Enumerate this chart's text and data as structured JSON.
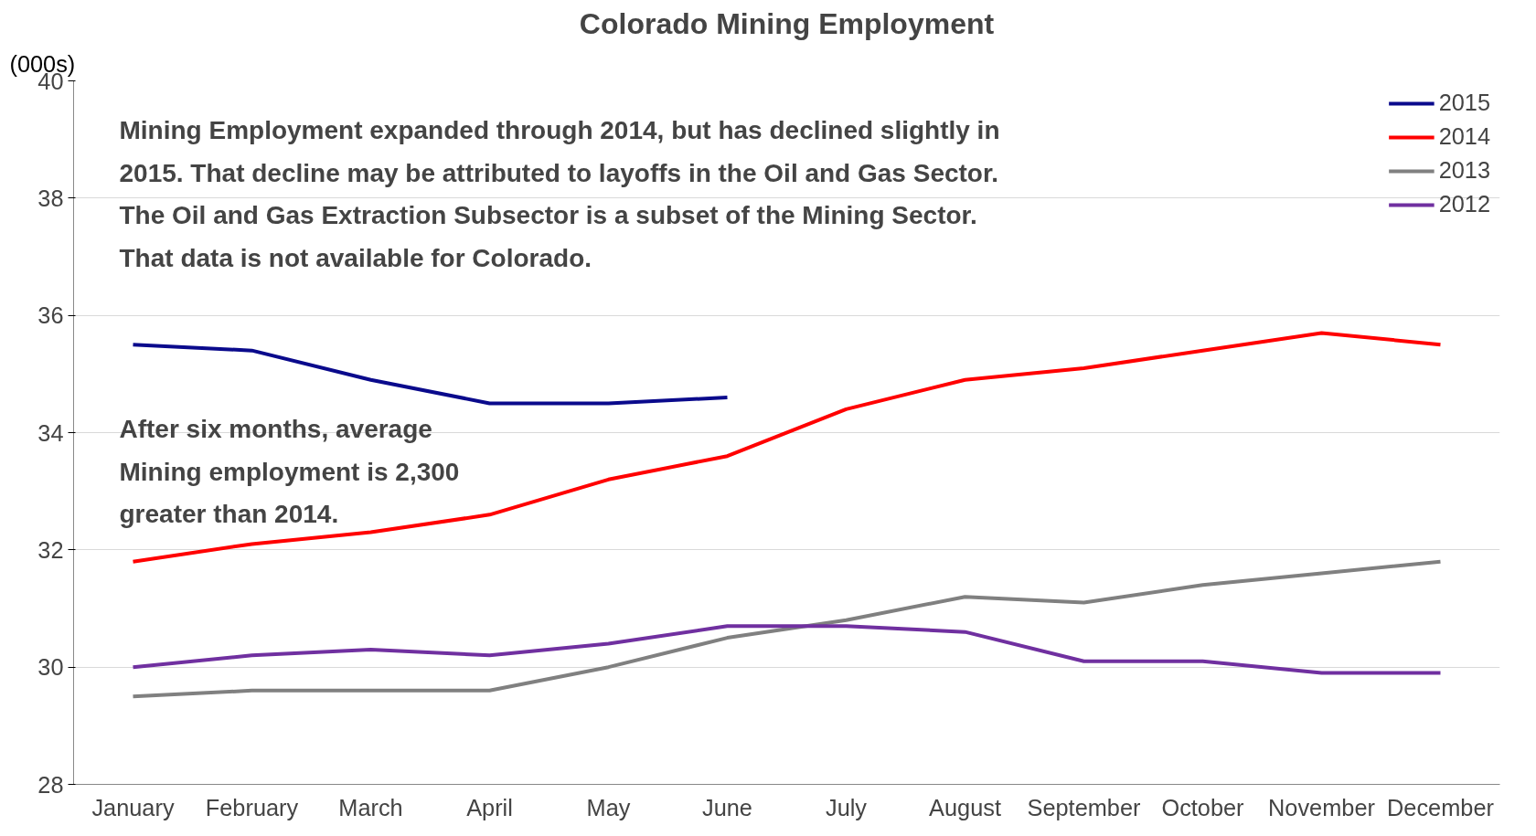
{
  "chart_data": {
    "type": "line",
    "title": "Colorado Mining Employment",
    "ylabel": "(000s)",
    "categories": [
      "January",
      "February",
      "March",
      "April",
      "May",
      "June",
      "July",
      "August",
      "September",
      "October",
      "November",
      "December"
    ],
    "series": [
      {
        "name": "2015",
        "color": "#0a0a8c",
        "values": [
          35.5,
          35.4,
          34.9,
          34.5,
          34.5,
          34.6,
          null,
          null,
          null,
          null,
          null,
          null
        ]
      },
      {
        "name": "2014",
        "color": "#ff0000",
        "values": [
          31.8,
          32.1,
          32.3,
          32.6,
          33.2,
          33.6,
          34.4,
          34.9,
          35.1,
          35.4,
          35.7,
          35.5
        ]
      },
      {
        "name": "2013",
        "color": "#808080",
        "values": [
          29.5,
          29.6,
          29.6,
          29.6,
          30.0,
          30.5,
          30.8,
          31.2,
          31.1,
          31.4,
          31.6,
          31.8
        ]
      },
      {
        "name": "2012",
        "color": "#7030a0",
        "values": [
          30.0,
          30.2,
          30.3,
          30.2,
          30.4,
          30.7,
          30.7,
          30.6,
          30.1,
          30.1,
          29.9,
          29.9
        ]
      }
    ],
    "ylim": [
      28,
      40
    ],
    "yticks": [
      28,
      30,
      32,
      34,
      36,
      38,
      40
    ],
    "grid": "y",
    "legend": "top right",
    "marker": "none",
    "line_style": "solid",
    "annotations": [
      "Mining Employment expanded through 2014, but has declined slightly in\n2015. That decline may be attributed to layoffs in the Oil and Gas Sector.\nThe Oil and Gas Extraction Subsector is a subset of the Mining Sector.\nThat data is not available for Colorado.",
      "After six months, average\nMining employment is 2,300\ngreater than 2014."
    ]
  }
}
